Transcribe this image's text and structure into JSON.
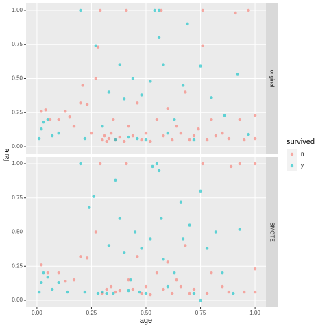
{
  "chart_data": {
    "type": "scatter",
    "x_label": "age",
    "y_label": "fare",
    "legend_title": "survived",
    "xlim": [
      -0.05,
      1.05
    ],
    "ylim": [
      -0.05,
      1.05
    ],
    "xticks": [
      {
        "value": 0,
        "label": "0.00"
      },
      {
        "value": 0.25,
        "label": "0.25"
      },
      {
        "value": 0.5,
        "label": "0.50"
      },
      {
        "value": 0.75,
        "label": "0.75"
      },
      {
        "value": 1,
        "label": "1.00"
      }
    ],
    "yticks": [
      {
        "value": 0,
        "label": "0.00"
      },
      {
        "value": 0.25,
        "label": "0.25"
      },
      {
        "value": 0.5,
        "label": "0.50"
      },
      {
        "value": 0.75,
        "label": "0.75"
      },
      {
        "value": 1,
        "label": "1.00"
      }
    ],
    "grid": true,
    "series": [
      {
        "name": "n",
        "color": "#F8766D"
      },
      {
        "name": "y",
        "color": "#00BFC4"
      }
    ],
    "panels": [
      {
        "name": "original",
        "series": [
          {
            "x": [
              0.02,
              0.04,
              0.06,
              0.1,
              0.13,
              0.15,
              0.17,
              0.2,
              0.21,
              0.23,
              0.25,
              0.27,
              0.28,
              0.29,
              0.3,
              0.31,
              0.32,
              0.33,
              0.34,
              0.35,
              0.36,
              0.38,
              0.4,
              0.41,
              0.42,
              0.44,
              0.46,
              0.48,
              0.5,
              0.52,
              0.55,
              0.57,
              0.58,
              0.6,
              0.62,
              0.64,
              0.66,
              0.68,
              0.7,
              0.72,
              0.74,
              0.76,
              0.76,
              0.78,
              0.8,
              0.82,
              0.85,
              0.88,
              0.91,
              0.93,
              0.95,
              0.97,
              1.0,
              1.0
            ],
            "values": [
              0.26,
              0.27,
              0.2,
              0.2,
              0.26,
              0.22,
              0.15,
              0.32,
              0.45,
              0.31,
              0.1,
              0.5,
              0.73,
              1.0,
              0.05,
              0.08,
              0.04,
              0.06,
              0.1,
              0.2,
              0.05,
              0.07,
              0.04,
              1.0,
              0.15,
              0.08,
              0.32,
              0.05,
              0.1,
              0.04,
              0.2,
              1.0,
              0.08,
              0.28,
              0.05,
              0.15,
              0.1,
              0.4,
              0.05,
              0.08,
              0.13,
              1.0,
              0.74,
              0.05,
              0.2,
              0.08,
              0.1,
              0.06,
              0.98,
              0.2,
              0.05,
              1.0,
              0.06,
              0.23
            ]
          },
          {
            "x": [
              0.01,
              0.02,
              0.03,
              0.05,
              0.07,
              0.1,
              0.2,
              0.22,
              0.27,
              0.3,
              0.33,
              0.36,
              0.38,
              0.4,
              0.42,
              0.44,
              0.46,
              0.48,
              0.5,
              0.52,
              0.54,
              0.56,
              0.56,
              0.58,
              0.6,
              0.63,
              0.67,
              0.69,
              0.72,
              0.75,
              0.8,
              0.86,
              0.92,
              0.97
            ],
            "values": [
              0.06,
              0.13,
              0.18,
              0.2,
              0.08,
              0.1,
              1.0,
              0.06,
              0.74,
              0.15,
              0.4,
              0.05,
              0.6,
              0.35,
              0.07,
              0.5,
              0.06,
              0.38,
              0.05,
              0.48,
              1.0,
              1.0,
              0.8,
              0.6,
              0.1,
              0.2,
              0.45,
              0.9,
              0.05,
              0.59,
              0.36,
              0.23,
              0.53,
              0.09
            ]
          }
        ]
      },
      {
        "name": "SMOTE",
        "series": [
          {
            "x": [
              0.02,
              0.05,
              0.1,
              0.13,
              0.17,
              0.2,
              0.23,
              0.27,
              0.29,
              0.3,
              0.32,
              0.34,
              0.36,
              0.38,
              0.41,
              0.42,
              0.44,
              0.46,
              0.48,
              0.5,
              0.52,
              0.55,
              0.58,
              0.6,
              0.62,
              0.64,
              0.66,
              0.68,
              0.7,
              0.72,
              0.76,
              0.78,
              0.8,
              0.85,
              0.88,
              0.89,
              0.93,
              0.95,
              1.0,
              1.0,
              1.0
            ],
            "values": [
              0.26,
              0.2,
              0.2,
              0.14,
              0.15,
              0.32,
              0.31,
              0.5,
              1.0,
              0.05,
              0.08,
              0.1,
              0.06,
              0.07,
              1.0,
              0.15,
              0.08,
              0.32,
              0.05,
              0.1,
              0.04,
              0.2,
              0.08,
              0.28,
              0.05,
              0.15,
              0.1,
              0.4,
              0.05,
              0.08,
              1.0,
              0.05,
              0.2,
              0.1,
              0.06,
              0.98,
              1.0,
              0.06,
              1.0,
              0.23,
              0.06
            ]
          },
          {
            "x": [
              0.01,
              0.02,
              0.03,
              0.05,
              0.07,
              0.1,
              0.14,
              0.2,
              0.22,
              0.24,
              0.26,
              0.28,
              0.3,
              0.32,
              0.33,
              0.35,
              0.36,
              0.38,
              0.4,
              0.42,
              0.43,
              0.45,
              0.47,
              0.48,
              0.5,
              0.52,
              0.53,
              0.55,
              0.56,
              0.57,
              0.58,
              0.6,
              0.63,
              0.66,
              0.67,
              0.7,
              0.72,
              0.75,
              0.78,
              0.82,
              0.85,
              0.9,
              0.93,
              0.75
            ],
            "values": [
              0.06,
              0.13,
              0.2,
              0.17,
              0.08,
              0.13,
              0.06,
              1.0,
              0.06,
              0.68,
              0.76,
              0.05,
              0.06,
              0.05,
              0.4,
              0.05,
              0.88,
              0.6,
              0.35,
              0.07,
              0.15,
              0.5,
              0.06,
              0.38,
              0.05,
              0.45,
              0.98,
              1.0,
              0.95,
              0.6,
              0.3,
              0.1,
              0.2,
              0.72,
              0.45,
              0.55,
              0.05,
              0.8,
              0.38,
              0.5,
              0.2,
              0.05,
              0.52,
              0.0
            ]
          }
        ]
      }
    ]
  }
}
